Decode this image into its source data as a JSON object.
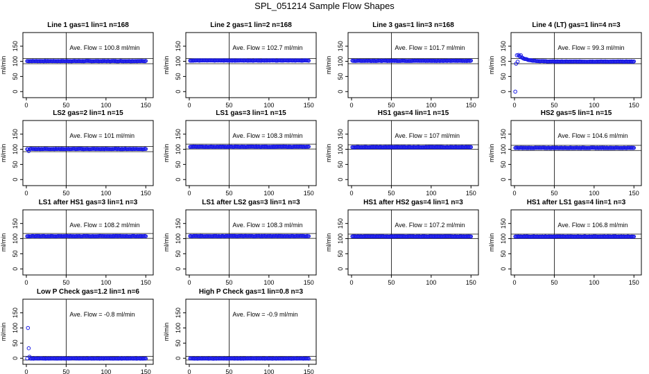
{
  "title": "SPL_051214  Sample Flow Shapes",
  "colors": {
    "points": "#1a1ae6",
    "axis": "#000000",
    "background": "#ffffff"
  },
  "chart_data": [
    {
      "type": "scatter",
      "title": "Line 1 gas=1 lin=1 n=168",
      "ylabel": "ml/min",
      "annotation": "Ave. Flow =  100.8  ml/min",
      "xlim": [
        0,
        155
      ],
      "ylim": [
        -20,
        195
      ],
      "xticks": [
        0,
        50,
        100,
        150
      ],
      "yticks": [
        0,
        50,
        100,
        150
      ],
      "hlines": [
        92,
        109
      ],
      "vline": 50,
      "base": 100.8,
      "start": []
    },
    {
      "type": "scatter",
      "title": "Line 2 gas=1 lin=2 n=168",
      "ylabel": "ml/min",
      "annotation": "Ave. Flow =  102.7  ml/min",
      "xlim": [
        0,
        155
      ],
      "ylim": [
        -20,
        195
      ],
      "xticks": [
        0,
        50,
        100,
        150
      ],
      "yticks": [
        0,
        50,
        100,
        150
      ],
      "hlines": [
        92,
        109
      ],
      "vline": 50,
      "base": 102.7,
      "start": []
    },
    {
      "type": "scatter",
      "title": "Line 3 gas=1 lin=3 n=168",
      "ylabel": "ml/min",
      "annotation": "Ave. Flow =  101.7  ml/min",
      "xlim": [
        0,
        155
      ],
      "ylim": [
        -20,
        195
      ],
      "xticks": [
        0,
        50,
        100,
        150
      ],
      "yticks": [
        0,
        50,
        100,
        150
      ],
      "hlines": [
        92,
        109
      ],
      "vline": 50,
      "base": 101.7,
      "start": []
    },
    {
      "type": "scatter",
      "title": "Line 4 (LT) gas=1 lin=4 n=3",
      "ylabel": "ml/min",
      "annotation": "Ave. Flow =  99.3  ml/min",
      "xlim": [
        0,
        155
      ],
      "ylim": [
        -20,
        195
      ],
      "xticks": [
        0,
        50,
        100,
        150
      ],
      "yticks": [
        0,
        50,
        100,
        150
      ],
      "hlines": [
        92,
        109
      ],
      "vline": 50,
      "base": 99.3,
      "start": [
        [
          1,
          0
        ],
        [
          2,
          92
        ],
        [
          3,
          120
        ],
        [
          5,
          121
        ],
        [
          8,
          120
        ]
      ],
      "decay": [
        20,
        10
      ]
    },
    {
      "type": "scatter",
      "title": "LS2 gas=2 lin=1 n=15",
      "ylabel": "ml/min",
      "annotation": "Ave. Flow =  101  ml/min",
      "xlim": [
        0,
        155
      ],
      "ylim": [
        -20,
        195
      ],
      "xticks": [
        0,
        50,
        100,
        150
      ],
      "yticks": [
        0,
        50,
        100,
        150
      ],
      "hlines": [
        92,
        109
      ],
      "vline": 50,
      "base": 101,
      "start": [
        [
          2,
          100
        ],
        [
          3,
          94
        ]
      ]
    },
    {
      "type": "scatter",
      "title": "LS1 gas=3 lin=1 n=15",
      "ylabel": "ml/min",
      "annotation": "Ave. Flow =  108.3  ml/min",
      "xlim": [
        0,
        155
      ],
      "ylim": [
        -20,
        195
      ],
      "xticks": [
        0,
        50,
        100,
        150
      ],
      "yticks": [
        0,
        50,
        100,
        150
      ],
      "hlines": [
        101,
        117
      ],
      "vline": 50,
      "base": 108.3,
      "start": []
    },
    {
      "type": "scatter",
      "title": "HS1 gas=4 lin=1 n=15",
      "ylabel": "ml/min",
      "annotation": "Ave. Flow =  107  ml/min",
      "xlim": [
        0,
        155
      ],
      "ylim": [
        -20,
        195
      ],
      "xticks": [
        0,
        50,
        100,
        150
      ],
      "yticks": [
        0,
        50,
        100,
        150
      ],
      "hlines": [
        100,
        115
      ],
      "vline": 50,
      "base": 107,
      "start": []
    },
    {
      "type": "scatter",
      "title": "HS2 gas=5 lin=1 n=15",
      "ylabel": "ml/min",
      "annotation": "Ave. Flow =  104.6  ml/min",
      "xlim": [
        0,
        155
      ],
      "ylim": [
        -20,
        195
      ],
      "xticks": [
        0,
        50,
        100,
        150
      ],
      "yticks": [
        0,
        50,
        100,
        150
      ],
      "hlines": [
        96,
        113
      ],
      "vline": 50,
      "base": 104.6,
      "start": []
    },
    {
      "type": "scatter",
      "title": "LS1 after HS1 gas=3 lin=1 n=3",
      "ylabel": "ml/min",
      "annotation": "Ave. Flow =  108.2  ml/min",
      "xlim": [
        0,
        155
      ],
      "ylim": [
        -20,
        195
      ],
      "xticks": [
        0,
        50,
        100,
        150
      ],
      "yticks": [
        0,
        50,
        100,
        150
      ],
      "hlines": [
        101,
        117
      ],
      "vline": 50,
      "base": 108.2,
      "start": []
    },
    {
      "type": "scatter",
      "title": "LS1 after LS2 gas=3 lin=1 n=3",
      "ylabel": "ml/min",
      "annotation": "Ave. Flow =  108.3  ml/min",
      "xlim": [
        0,
        155
      ],
      "ylim": [
        -20,
        195
      ],
      "xticks": [
        0,
        50,
        100,
        150
      ],
      "yticks": [
        0,
        50,
        100,
        150
      ],
      "hlines": [
        101,
        117
      ],
      "vline": 50,
      "base": 108.3,
      "start": []
    },
    {
      "type": "scatter",
      "title": "HS1 after HS2 gas=4 lin=1 n=3",
      "ylabel": "ml/min",
      "annotation": "Ave. Flow =  107.2  ml/min",
      "xlim": [
        0,
        155
      ],
      "ylim": [
        -20,
        195
      ],
      "xticks": [
        0,
        50,
        100,
        150
      ],
      "yticks": [
        0,
        50,
        100,
        150
      ],
      "hlines": [
        100,
        115
      ],
      "vline": 50,
      "base": 107.2,
      "start": []
    },
    {
      "type": "scatter",
      "title": "HS1 after LS1 gas=4 lin=1 n=3",
      "ylabel": "ml/min",
      "annotation": "Ave. Flow =  106.8  ml/min",
      "xlim": [
        0,
        155
      ],
      "ylim": [
        -20,
        195
      ],
      "xticks": [
        0,
        50,
        100,
        150
      ],
      "yticks": [
        0,
        50,
        100,
        150
      ],
      "hlines": [
        100,
        115
      ],
      "vline": 50,
      "base": 106.8,
      "start": []
    },
    {
      "type": "scatter",
      "title": "Low P Check gas=1.2 lin=1 n=6",
      "ylabel": "ml/min",
      "annotation": "Ave. Flow =  -0.8  ml/min",
      "xlim": [
        0,
        155
      ],
      "ylim": [
        -20,
        195
      ],
      "xticks": [
        0,
        50,
        100,
        150
      ],
      "yticks": [
        0,
        50,
        100,
        150
      ],
      "hlines": [
        -6,
        6
      ],
      "vline": 50,
      "base": -0.8,
      "start": [
        [
          2,
          100
        ],
        [
          3,
          33
        ],
        [
          4,
          5
        ]
      ]
    },
    {
      "type": "scatter",
      "title": "High P Check gas=1 lin=0.8 n=3",
      "ylabel": "ml/min",
      "annotation": "Ave. Flow =  -0.9  ml/min",
      "xlim": [
        0,
        155
      ],
      "ylim": [
        -20,
        195
      ],
      "xticks": [
        0,
        50,
        100,
        150
      ],
      "yticks": [
        0,
        50,
        100,
        150
      ],
      "hlines": [
        -6,
        6
      ],
      "vline": 50,
      "base": -0.9,
      "start": []
    }
  ]
}
